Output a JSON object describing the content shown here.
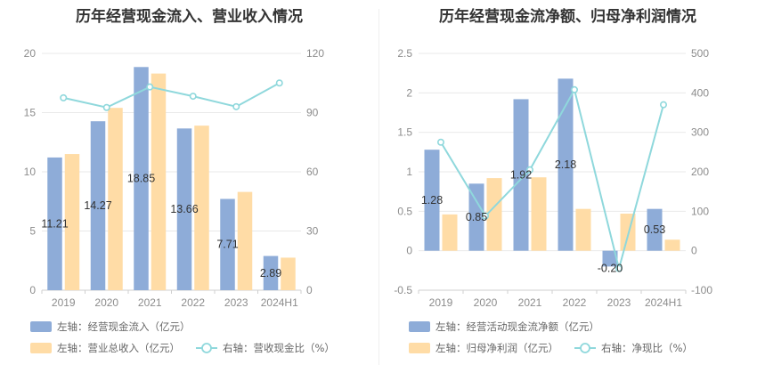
{
  "colors": {
    "bar_primary": "#8eacd8",
    "bar_secondary": "#ffdca6",
    "line": "#8fd8dc",
    "grid": "#e9e9e9",
    "axis_text": "#8c8c8c"
  },
  "chart_data": [
    {
      "type": "bar",
      "title": "历年经营现金流入、营业收入情况",
      "categories": [
        "2019",
        "2020",
        "2021",
        "2022",
        "2023",
        "2024H1"
      ],
      "y_left": {
        "ticks": [
          0,
          5,
          10,
          15,
          20
        ],
        "ylim": [
          0,
          20
        ]
      },
      "y_right": {
        "ticks": [
          0,
          30,
          60,
          90,
          120
        ],
        "ylim": [
          0,
          120
        ]
      },
      "grid": true,
      "legend_position": "bottom",
      "series": [
        {
          "name": "左轴：经营现金流入（亿元）",
          "type": "bar",
          "axis": "left",
          "values": [
            11.21,
            14.27,
            18.85,
            13.66,
            7.71,
            2.89
          ],
          "labels": [
            "11.21",
            "14.27",
            "18.85",
            "13.66",
            "7.71",
            "2.89"
          ]
        },
        {
          "name": "左轴：营业总收入（亿元）",
          "type": "bar",
          "axis": "left",
          "values": [
            11.5,
            15.4,
            18.3,
            13.9,
            8.3,
            2.75
          ]
        },
        {
          "name": "右轴：营收现金比（%）",
          "type": "line",
          "axis": "right",
          "values": [
            97.5,
            92.6,
            103.0,
            98.3,
            93.0,
            105.0
          ]
        }
      ]
    },
    {
      "type": "bar",
      "title": "历年经营现金流净额、归母净利润情况",
      "categories": [
        "2019",
        "2020",
        "2021",
        "2022",
        "2023",
        "2024H1"
      ],
      "y_left": {
        "ticks": [
          -0.5,
          0,
          0.5,
          1,
          1.5,
          2,
          2.5
        ],
        "tick_labels": [
          "-0.5",
          "0",
          "0.5",
          "1",
          "1.5",
          "2",
          "2.5"
        ],
        "ylim": [
          -0.5,
          2.5
        ]
      },
      "y_right": {
        "ticks": [
          -100,
          0,
          100,
          200,
          300,
          400,
          500
        ],
        "ylim": [
          -100,
          500
        ]
      },
      "grid": true,
      "legend_position": "bottom",
      "series": [
        {
          "name": "左轴：经营活动现金流净额（亿元）",
          "type": "bar",
          "axis": "left",
          "values": [
            1.28,
            0.85,
            1.92,
            2.18,
            -0.2,
            0.53
          ],
          "labels": [
            "1.28",
            "0.85",
            "1.92",
            "2.18",
            "-0.20",
            "0.53"
          ]
        },
        {
          "name": "左轴：归母净利润（亿元）",
          "type": "bar",
          "axis": "left",
          "values": [
            0.46,
            0.92,
            0.93,
            0.53,
            0.47,
            0.14
          ]
        },
        {
          "name": "右轴：净现比（%）",
          "type": "line",
          "axis": "right",
          "values": [
            275,
            88,
            205,
            408,
            -45,
            370
          ]
        }
      ]
    }
  ]
}
